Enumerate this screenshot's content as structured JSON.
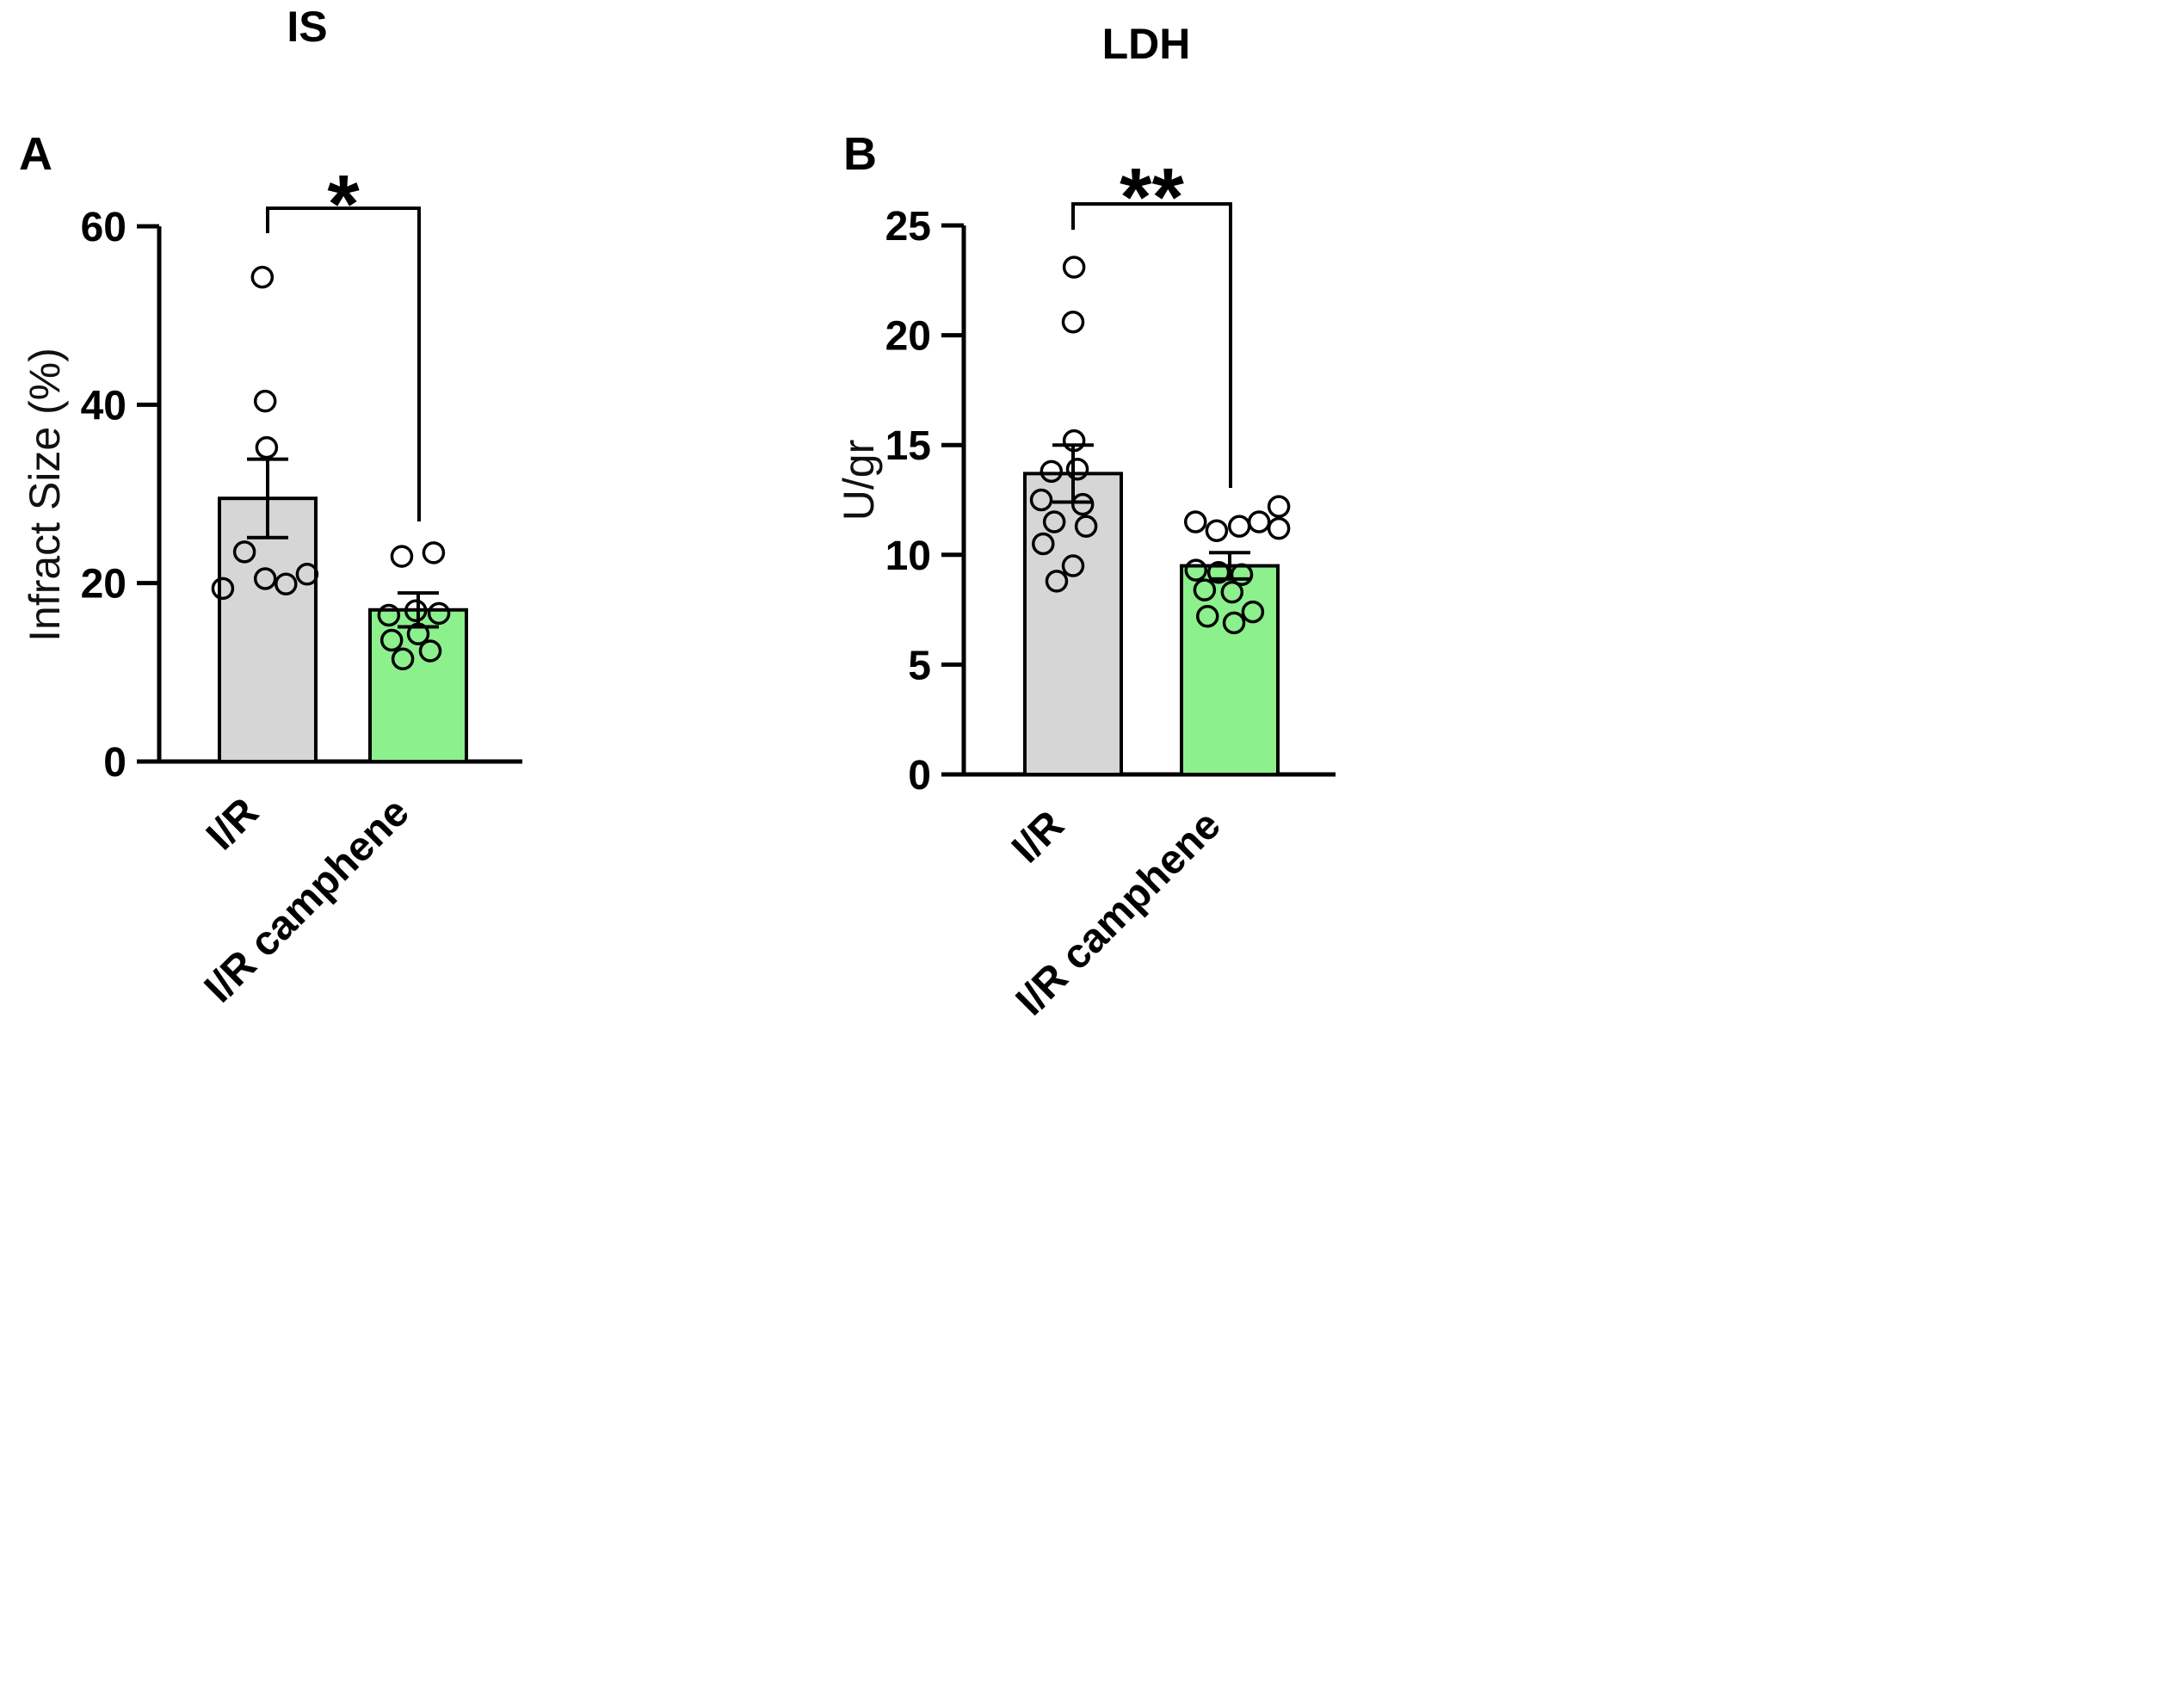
{
  "chart_data": [
    {
      "type": "bar",
      "panel": "A",
      "title": "IS",
      "ylabel": "Infract Size (%)",
      "ylim": [
        0,
        60
      ],
      "yticks": [
        0,
        20,
        40,
        60
      ],
      "categories": [
        "I/R",
        "I/R camphene"
      ],
      "bar_colors": [
        "#d6d6d6",
        "#8cf08c"
      ],
      "significance": "*",
      "grid": false,
      "legend": false,
      "series": [
        {
          "name": "I/R",
          "mean": 29.5,
          "sem": 4.4,
          "points": [
            54.3,
            40.4,
            35.2,
            23.5,
            20.5,
            21.0,
            19.9,
            19.4
          ],
          "point_dx": [
            -0.11,
            -0.05,
            -0.02,
            -0.48,
            -0.05,
            0.82,
            0.38,
            -0.93
          ]
        },
        {
          "name": "I/R camphene",
          "mean": 17.0,
          "sem": 1.9,
          "points": [
            23.0,
            23.4,
            16.4,
            16.9,
            16.6,
            13.6,
            14.3,
            11.5,
            12.4
          ],
          "point_dx": [
            -0.34,
            0.32,
            -0.61,
            -0.05,
            0.43,
            -0.55,
            0.0,
            -0.32,
            0.25
          ]
        }
      ]
    },
    {
      "type": "bar",
      "panel": "B",
      "title": "LDH",
      "ylabel": "U/gr",
      "ylim": [
        0,
        25
      ],
      "yticks": [
        0,
        5,
        10,
        15,
        20,
        25
      ],
      "categories": [
        "I/R",
        "I/R camphene"
      ],
      "bar_colors": [
        "#d6d6d6",
        "#8cf08c"
      ],
      "significance": "**",
      "grid": false,
      "legend": false,
      "series": [
        {
          "name": "I/R",
          "mean": 13.7,
          "sem": 1.3,
          "points": [
            23.1,
            20.6,
            15.2,
            13.8,
            13.9,
            12.5,
            12.3,
            11.5,
            11.3,
            10.5,
            9.5,
            8.8
          ],
          "point_dx": [
            0.02,
            0.0,
            0.02,
            -0.45,
            0.09,
            -0.66,
            0.2,
            -0.39,
            0.27,
            -0.62,
            0.0,
            -0.34
          ]
        },
        {
          "name": "I/R camphene",
          "mean": 9.5,
          "sem": 0.6,
          "points": [
            11.5,
            11.1,
            11.3,
            11.5,
            12.2,
            11.2,
            9.3,
            9.2,
            9.1,
            8.4,
            8.3,
            7.2,
            6.9,
            7.4
          ],
          "point_dx": [
            -0.71,
            -0.27,
            0.2,
            0.61,
            1.02,
            1.02,
            -0.7,
            -0.23,
            0.25,
            -0.52,
            0.05,
            -0.46,
            0.09,
            0.48
          ]
        }
      ]
    }
  ]
}
